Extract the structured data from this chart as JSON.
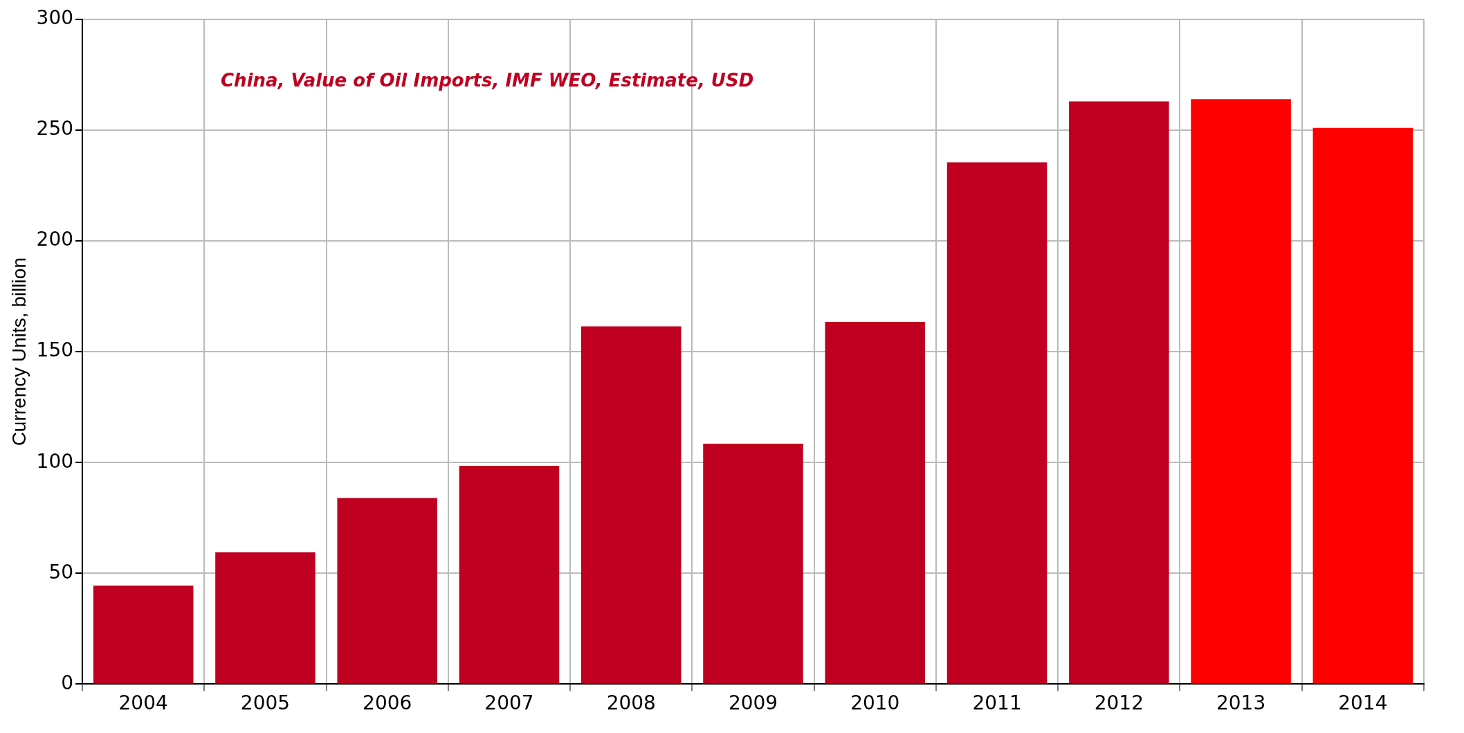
{
  "chart_data": {
    "type": "bar",
    "ylabel": "Currency Units, billion",
    "categories": [
      "2004",
      "2005",
      "2006",
      "2007",
      "2008",
      "2009",
      "2010",
      "2011",
      "2012",
      "2013",
      "2014"
    ],
    "series": [
      {
        "name": "China, Value of Oil Imports, IMF WEO, Estimate, USD",
        "color": "#c00020",
        "colors": [
          "#c00020",
          "#c00020",
          "#c00020",
          "#c00020",
          "#c00020",
          "#c00020",
          "#c00020",
          "#c00020",
          "#c00020",
          "#ff0000",
          "#ff0000"
        ],
        "values": [
          44.5,
          59.5,
          84,
          98.5,
          161.5,
          108.5,
          163.5,
          235.5,
          263,
          264,
          251
        ]
      }
    ],
    "ylim": [
      0,
      300
    ],
    "yticks": [
      0,
      50,
      100,
      150,
      200,
      250,
      300
    ],
    "grid": true,
    "legend": "top left"
  }
}
